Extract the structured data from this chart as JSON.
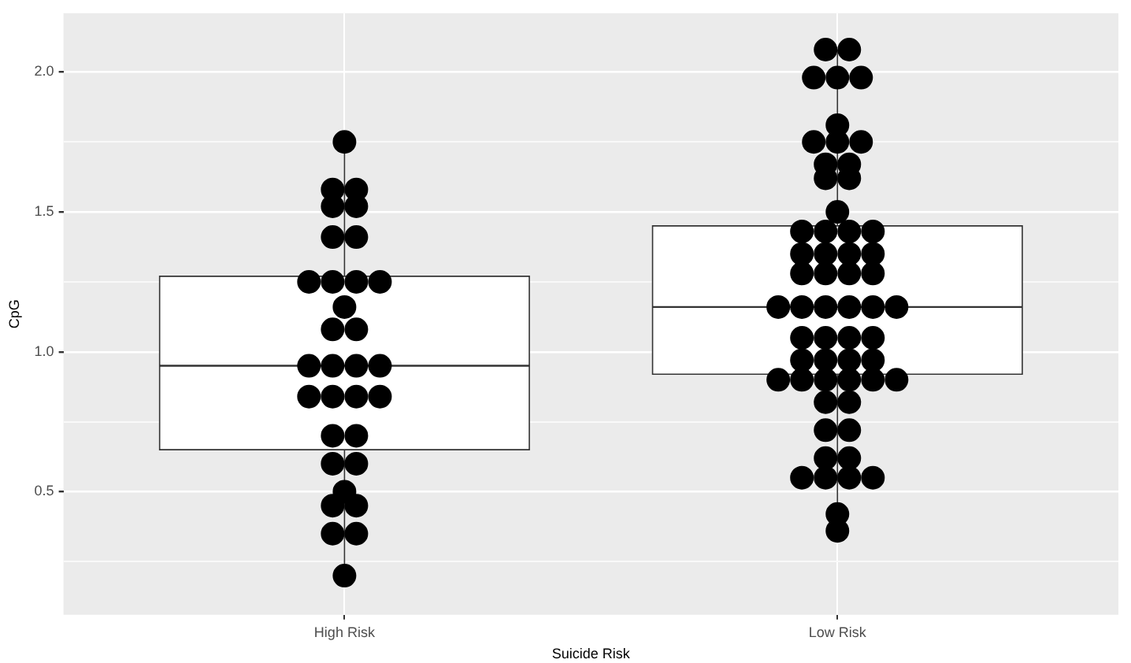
{
  "chart_data": {
    "type": "box",
    "xlabel": "Suicide Risk",
    "ylabel": "CpG",
    "categories": [
      "High Risk",
      "Low Risk"
    ],
    "boxes": [
      {
        "low": 0.2,
        "q1": 0.65,
        "median": 0.95,
        "q3": 1.27,
        "high": 1.75
      },
      {
        "low": 0.36,
        "q1": 0.92,
        "median": 1.16,
        "q3": 1.45,
        "high": 2.08
      }
    ],
    "series": [
      {
        "type": "scatter",
        "color": "#000000",
        "x": [
          "High Risk",
          "High Risk",
          "High Risk",
          "High Risk",
          "High Risk",
          "High Risk",
          "High Risk",
          "High Risk",
          "High Risk",
          "High Risk",
          "High Risk",
          "High Risk",
          "High Risk",
          "High Risk",
          "High Risk",
          "High Risk",
          "High Risk",
          "High Risk",
          "High Risk",
          "High Risk",
          "High Risk",
          "High Risk",
          "High Risk",
          "High Risk",
          "High Risk",
          "High Risk",
          "High Risk",
          "High Risk",
          "High Risk",
          "High Risk",
          "High Risk",
          "High Risk"
        ],
        "values": [
          1.75,
          1.58,
          1.58,
          1.52,
          1.52,
          1.41,
          1.41,
          1.25,
          1.25,
          1.25,
          1.25,
          1.16,
          1.08,
          1.08,
          0.95,
          0.95,
          0.95,
          0.95,
          0.84,
          0.84,
          0.84,
          0.84,
          0.7,
          0.7,
          0.6,
          0.6,
          0.5,
          0.45,
          0.45,
          0.35,
          0.35,
          0.2
        ]
      },
      {
        "type": "scatter",
        "color": "#000000",
        "x": [
          "Low Risk",
          "Low Risk",
          "Low Risk",
          "Low Risk",
          "Low Risk",
          "Low Risk",
          "Low Risk",
          "Low Risk",
          "Low Risk",
          "Low Risk",
          "Low Risk",
          "Low Risk",
          "Low Risk",
          "Low Risk",
          "Low Risk",
          "Low Risk",
          "Low Risk",
          "Low Risk",
          "Low Risk",
          "Low Risk",
          "Low Risk",
          "Low Risk",
          "Low Risk",
          "Low Risk",
          "Low Risk",
          "Low Risk",
          "Low Risk",
          "Low Risk",
          "Low Risk",
          "Low Risk",
          "Low Risk",
          "Low Risk",
          "Low Risk",
          "Low Risk",
          "Low Risk",
          "Low Risk",
          "Low Risk",
          "Low Risk",
          "Low Risk",
          "Low Risk",
          "Low Risk",
          "Low Risk",
          "Low Risk",
          "Low Risk",
          "Low Risk",
          "Low Risk",
          "Low Risk",
          "Low Risk",
          "Low Risk",
          "Low Risk",
          "Low Risk",
          "Low Risk",
          "Low Risk",
          "Low Risk",
          "Low Risk",
          "Low Risk",
          "Low Risk",
          "Low Risk"
        ],
        "values": [
          2.08,
          2.08,
          1.98,
          1.98,
          1.98,
          1.81,
          1.75,
          1.75,
          1.75,
          1.67,
          1.67,
          1.62,
          1.62,
          1.5,
          1.43,
          1.43,
          1.43,
          1.43,
          1.35,
          1.35,
          1.35,
          1.35,
          1.28,
          1.28,
          1.28,
          1.28,
          1.16,
          1.16,
          1.16,
          1.16,
          1.16,
          1.16,
          1.05,
          1.05,
          1.05,
          1.05,
          0.97,
          0.97,
          0.97,
          0.97,
          0.9,
          0.9,
          0.9,
          0.9,
          0.9,
          0.9,
          0.82,
          0.82,
          0.72,
          0.72,
          0.62,
          0.62,
          0.55,
          0.55,
          0.55,
          0.55,
          0.42,
          0.36
        ]
      }
    ],
    "ylim": [
      0.06,
      2.21
    ],
    "yticks": [
      {
        "value": 0.25,
        "label": null
      },
      {
        "value": 0.5,
        "label": "0.5"
      },
      {
        "value": 0.75,
        "label": null
      },
      {
        "value": 1.0,
        "label": "1.0"
      },
      {
        "value": 1.25,
        "label": null
      },
      {
        "value": 1.5,
        "label": "1.5"
      },
      {
        "value": 1.75,
        "label": null
      },
      {
        "value": 2.0,
        "label": "2.0"
      }
    ],
    "grid": true,
    "legend": false,
    "marker": "circle"
  }
}
